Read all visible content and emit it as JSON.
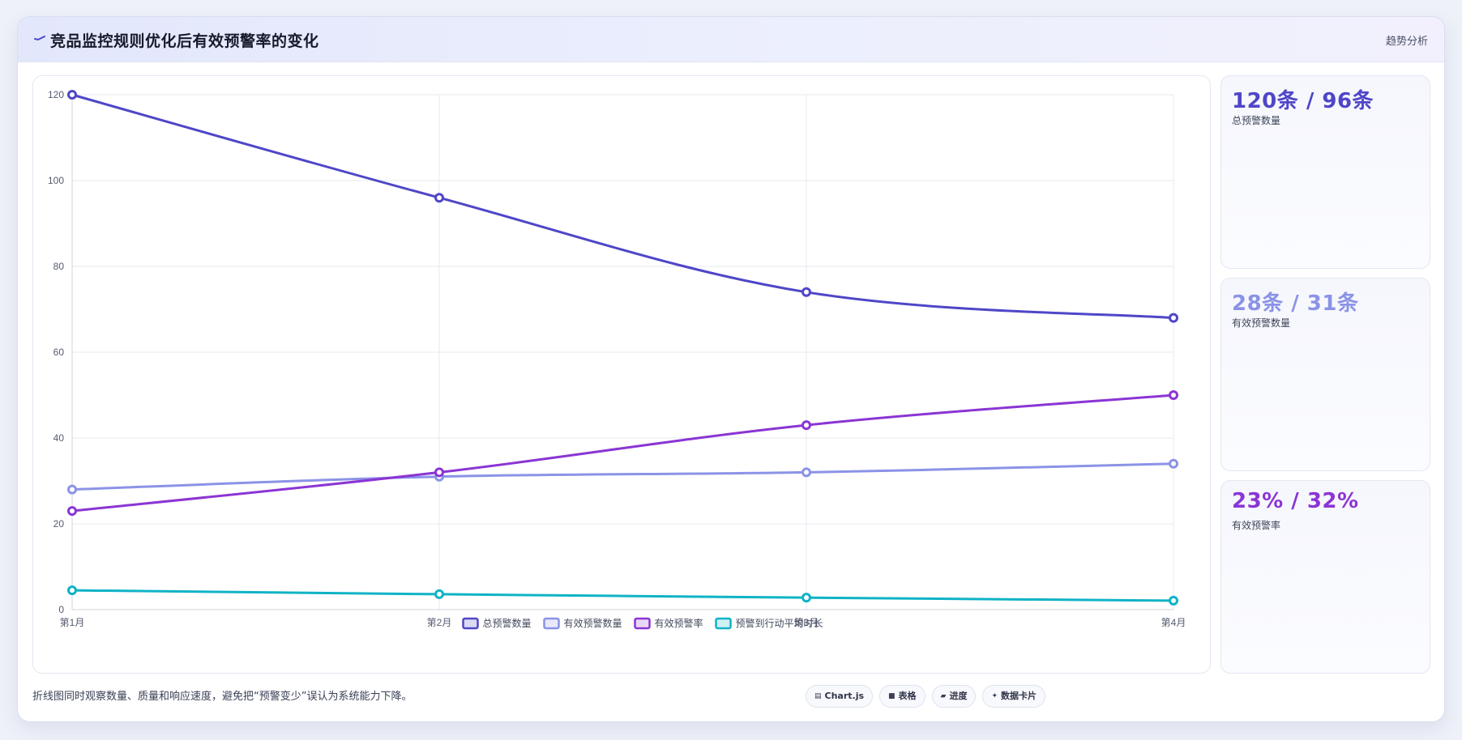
{
  "header": {
    "title_icon": "trend-line-icon",
    "title": "竞品监控规则优化后有效预警率的变化",
    "tag": "趋势分析"
  },
  "chart_data": {
    "type": "line",
    "categories": [
      "第1月",
      "第2月",
      "第3月",
      "第4月"
    ],
    "ylim": [
      0,
      120
    ],
    "yticks": [
      0,
      20,
      40,
      60,
      80,
      100,
      120
    ],
    "grid": true,
    "legend_position": "bottom",
    "series": [
      {
        "name": "总预警数量",
        "values": [
          120,
          96,
          74,
          68
        ],
        "color": "#4f46c8"
      },
      {
        "name": "有效预警数量",
        "values": [
          28,
          31,
          32,
          34
        ],
        "color": "#8b93e6"
      },
      {
        "name": "有效预警率",
        "values": [
          23,
          32,
          43,
          50
        ],
        "color": "#8b35d4"
      },
      {
        "name": "预警到行动平均时长",
        "values": [
          4.5,
          3.6,
          2.8,
          2.1
        ],
        "color": "#10b3c6"
      }
    ]
  },
  "stats": [
    {
      "value": "120条 / 96条",
      "label": "总预警数量",
      "color": "#4f46c8"
    },
    {
      "value": "28条 / 31条",
      "label": "有效预警数量",
      "color": "#8b93e6"
    },
    {
      "value": "23% / 32%",
      "label": "有效预警率",
      "color": "#8b35d4"
    }
  ],
  "footer": {
    "note": "折线图同时观察数量、质量和响应速度，避免把“预警变少”误认为系统能力下降。",
    "chips": [
      {
        "icon": "chart-icon",
        "glyph": "▤",
        "label": "Chart.js"
      },
      {
        "icon": "table-icon",
        "glyph": "■",
        "label": "表格"
      },
      {
        "icon": "progress-icon",
        "glyph": "▰",
        "label": "进度"
      },
      {
        "icon": "sparkle-icon",
        "glyph": "✦",
        "label": "数据卡片"
      }
    ]
  }
}
